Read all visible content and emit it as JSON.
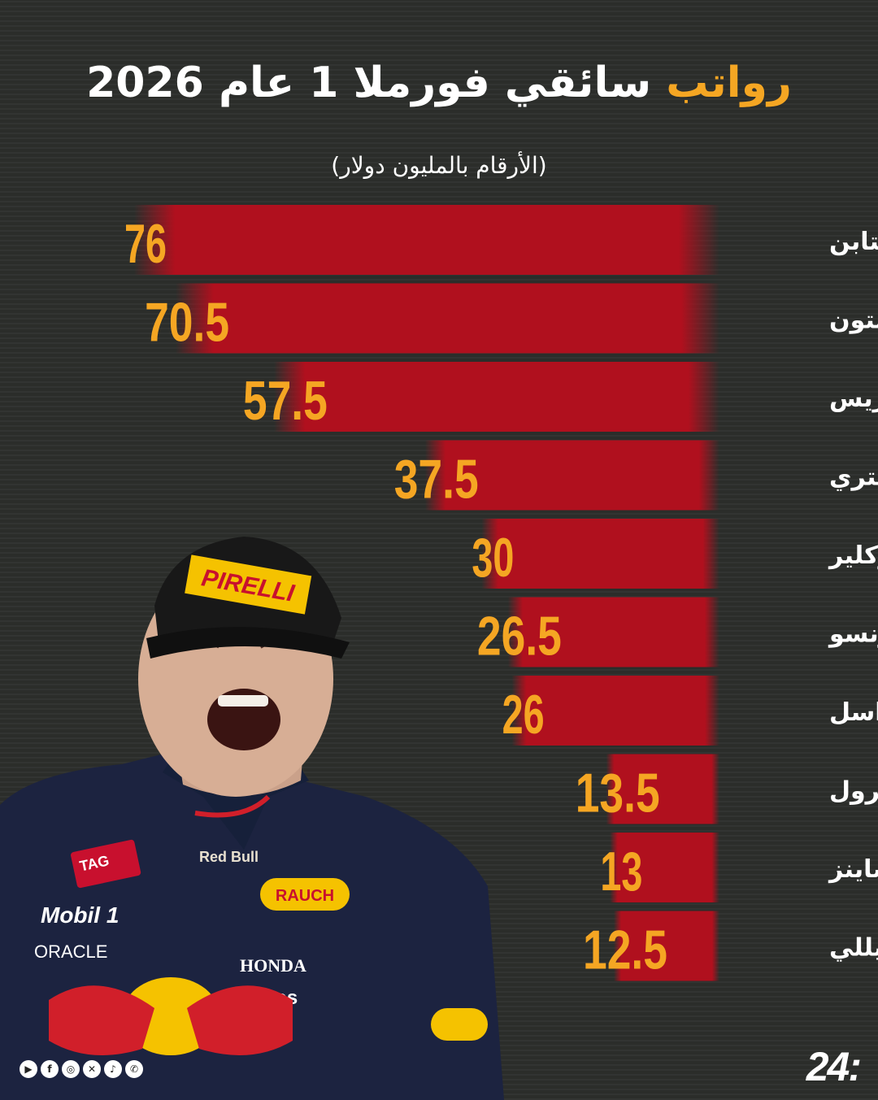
{
  "header": {
    "title_accent": "رواتب",
    "title_rest": "سائقي فورملا 1 عام 2026",
    "subtitle": "(الأرقام بالمليون دولار)"
  },
  "chart_data": {
    "type": "bar",
    "orientation": "horizontal",
    "title": "رواتب سائقي فورملا 1 عام 2026",
    "subtitle": "(الأرقام بالمليون دولار)",
    "categories": [
      "ماكس فيرستابن",
      "لويس هاميلتون",
      "لاندو نوريس",
      "أوسكار بياستري",
      "تشارلز لوكلير",
      "فرناندو ألونسو",
      "جورج راسل",
      "لانس سترول",
      "كارلوس ساينز",
      "كيمي أنتونيللي"
    ],
    "values": [
      76,
      70.5,
      57.5,
      37.5,
      30,
      26.5,
      26,
      13.5,
      13,
      12.5
    ],
    "value_labels": [
      "76",
      "70.5",
      "57.5",
      "37.5",
      "30",
      "26.5",
      "26",
      "13.5",
      "13",
      "12.5"
    ],
    "xlabel": "",
    "ylabel": "",
    "grid": false,
    "legend": "none",
    "bar_color": "#b0101e",
    "value_color": "#f5a623"
  },
  "footer": {
    "brand": "24:",
    "social_icons": [
      "youtube-icon",
      "facebook-icon",
      "instagram-icon",
      "x-icon",
      "tiktok-icon",
      "whatsapp-icon"
    ]
  }
}
